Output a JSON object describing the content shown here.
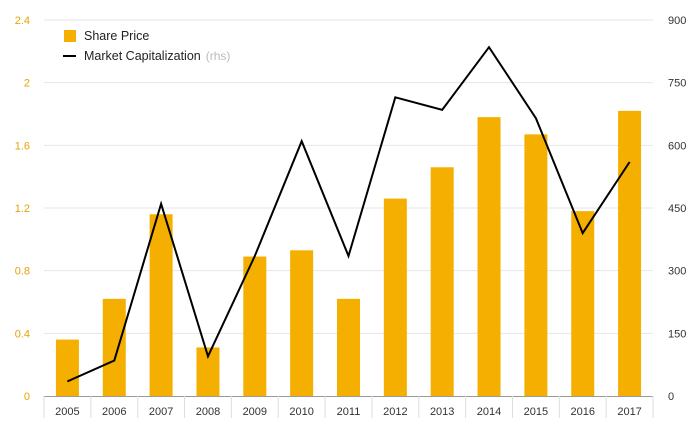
{
  "chart_data": {
    "type": "bar",
    "categories": [
      "2005",
      "2006",
      "2007",
      "2008",
      "2009",
      "2010",
      "2011",
      "2012",
      "2013",
      "2014",
      "2015",
      "2016",
      "2017"
    ],
    "series": [
      {
        "name": "Share Price",
        "type": "bar",
        "axis": "left",
        "color": "#F5AF00",
        "values": [
          0.36,
          0.62,
          1.16,
          0.31,
          0.89,
          0.93,
          0.62,
          1.26,
          1.46,
          1.78,
          1.67,
          1.18,
          1.82
        ]
      },
      {
        "name": "Market Capitalization",
        "name_suffix": "(rhs)",
        "type": "line",
        "axis": "right",
        "color": "#000000",
        "values": [
          35,
          85,
          460,
          95,
          335,
          610,
          335,
          715,
          685,
          835,
          665,
          390,
          560
        ]
      }
    ],
    "y_left": {
      "lim": [
        0,
        2.4
      ],
      "ticks": [
        "0",
        "0.4",
        "0.8",
        "1.2",
        "1.6",
        "2",
        "2.4"
      ],
      "tick_color": "#E6A400"
    },
    "y_right": {
      "lim": [
        0,
        900
      ],
      "ticks": [
        "0",
        "150",
        "300",
        "450",
        "600",
        "750",
        "900"
      ],
      "tick_color": "#333333"
    },
    "grid": true,
    "legend_position": "top-left",
    "title": "",
    "xlabel": "",
    "ylabel": ""
  }
}
